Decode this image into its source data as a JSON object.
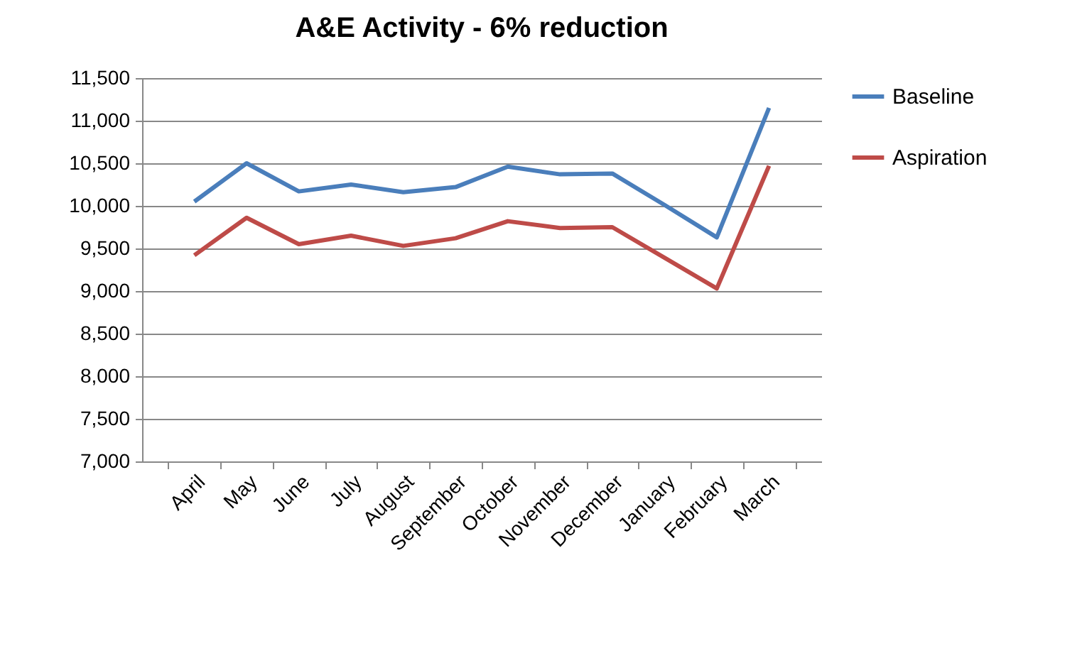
{
  "chart_data": {
    "type": "line",
    "title": "A&E Activity - 6% reduction",
    "categories": [
      "April",
      "May",
      "June",
      "July",
      "August",
      "September",
      "October",
      "November",
      "December",
      "January",
      "February",
      "March"
    ],
    "series": [
      {
        "name": "Baseline",
        "color": "#4a7ebb",
        "values": [
          10050,
          10500,
          10170,
          10250,
          10160,
          10220,
          10460,
          10370,
          10380,
          10010,
          9630,
          11150
        ]
      },
      {
        "name": "Aspiration",
        "color": "#be4b48",
        "values": [
          9420,
          9860,
          9550,
          9650,
          9530,
          9620,
          9820,
          9740,
          9750,
          9390,
          9030,
          10470
        ]
      }
    ],
    "ylim": [
      7000,
      11500
    ],
    "yticks": [
      {
        "value": 7000,
        "label": "7,000"
      },
      {
        "value": 7500,
        "label": "7,500"
      },
      {
        "value": 8000,
        "label": "8,000"
      },
      {
        "value": 8500,
        "label": "8,500"
      },
      {
        "value": 9000,
        "label": "9,000"
      },
      {
        "value": 9500,
        "label": "9,500"
      },
      {
        "value": 10000,
        "label": "10,000"
      },
      {
        "value": 10500,
        "label": "10,500"
      },
      {
        "value": 11000,
        "label": "11,000"
      },
      {
        "value": 11500,
        "label": "11,500"
      }
    ],
    "grid": "y",
    "legend": "right",
    "marker": "none",
    "line_style": "solid"
  }
}
